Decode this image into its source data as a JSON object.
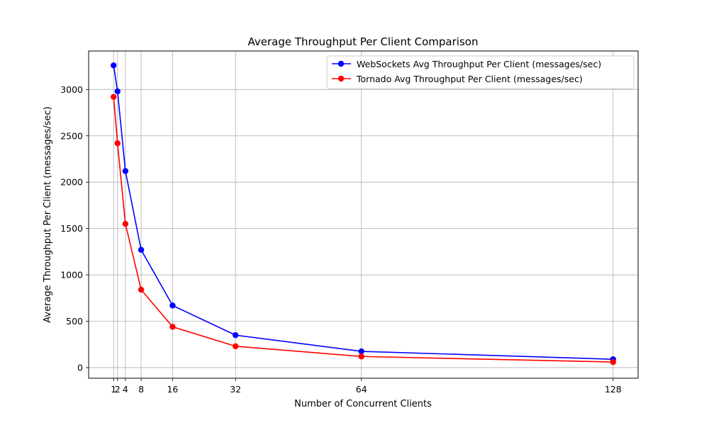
{
  "chart_data": {
    "type": "line",
    "title": "Average Throughput Per Client Comparison",
    "xlabel": "Number of Concurrent Clients",
    "ylabel": "Average Throughput Per Client (messages/sec)",
    "x": [
      1,
      2,
      4,
      8,
      16,
      32,
      64,
      128
    ],
    "x_ticks": [
      1,
      2,
      4,
      8,
      16,
      32,
      64,
      128
    ],
    "y_ticks": [
      0,
      500,
      1000,
      1500,
      2000,
      2500,
      3000
    ],
    "xlim": [
      -5.35,
      134.35
    ],
    "ylim": [
      -115,
      3415
    ],
    "grid": true,
    "legend_position": "top-right",
    "series": [
      {
        "name": "WebSockets Avg Throughput Per Client (messages/sec)",
        "color": "#0000ff",
        "values": [
          3260,
          2980,
          2120,
          1270,
          670,
          350,
          175,
          90
        ]
      },
      {
        "name": "Tornado Avg Throughput Per Client (messages/sec)",
        "color": "#ff0000",
        "values": [
          2920,
          2420,
          1550,
          840,
          440,
          230,
          120,
          60
        ]
      }
    ]
  }
}
